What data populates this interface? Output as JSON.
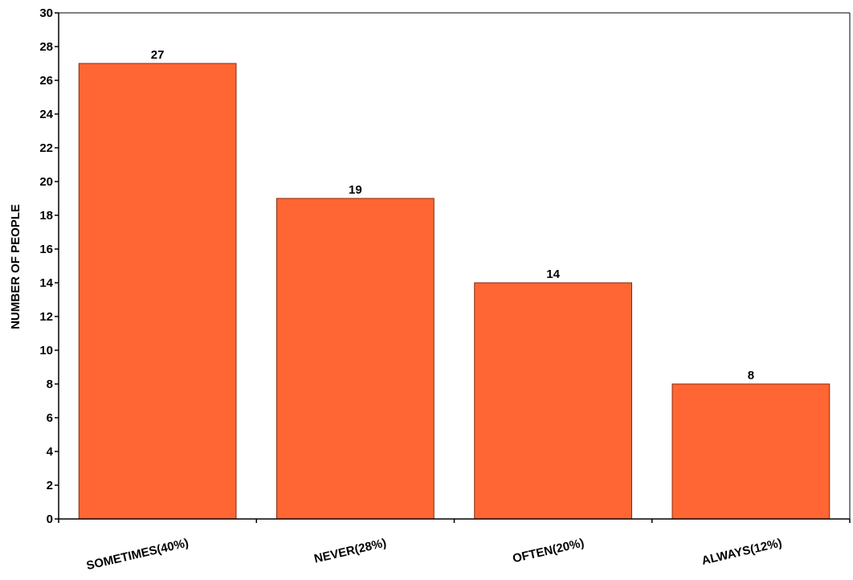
{
  "chart_data": {
    "type": "bar",
    "categories": [
      "SOMETIMES(40%)",
      "NEVER(28%)",
      "OFTEN(20%)",
      "ALWAYS(12%)"
    ],
    "values": [
      27,
      19,
      14,
      8
    ],
    "title": "",
    "xlabel": "",
    "ylabel": "NUMBER OF PEOPLE",
    "ylim": [
      0,
      30
    ],
    "yticks": [
      0,
      2,
      4,
      6,
      8,
      10,
      12,
      14,
      16,
      18,
      20,
      22,
      24,
      26,
      28,
      30
    ],
    "grid": false,
    "legend": "none",
    "data_labels": true,
    "colors": {
      "bar_fill": "#ff6633",
      "bar_stroke": "#8a2a0a",
      "axis": "#000000",
      "background": "#ffffff"
    }
  }
}
